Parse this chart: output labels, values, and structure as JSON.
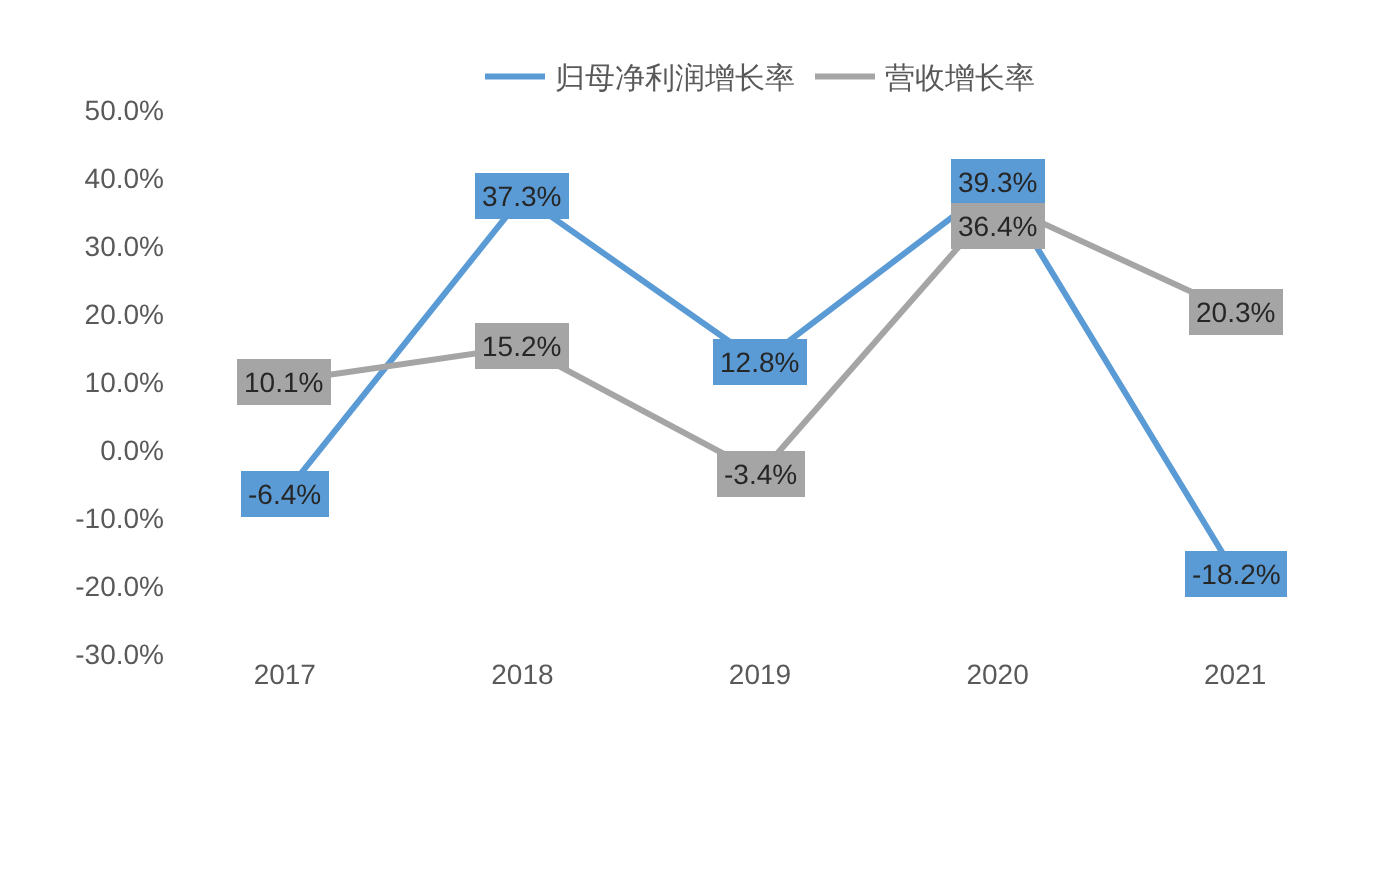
{
  "chart_data": {
    "type": "line",
    "categories": [
      "2017",
      "2018",
      "2019",
      "2020",
      "2021"
    ],
    "series": [
      {
        "name": "归母净利润增长率",
        "color": "#5b9bd5",
        "values": [
          -6.4,
          37.3,
          12.8,
          39.3,
          -18.2
        ],
        "value_labels": [
          "-6.4%",
          "37.3%",
          "12.8%",
          "39.3%",
          "-18.2%"
        ]
      },
      {
        "name": "营收增长率",
        "color": "#a5a5a5",
        "values": [
          10.1,
          15.2,
          -3.4,
          36.4,
          20.3
        ],
        "value_labels": [
          "10.1%",
          "15.2%",
          "-3.4%",
          "36.4%",
          "20.3%"
        ]
      }
    ],
    "ylim": [
      -30,
      50
    ],
    "yticks": [
      {
        "value": -30,
        "label": "-30.0%"
      },
      {
        "value": -20,
        "label": "-20.0%"
      },
      {
        "value": -10,
        "label": "-10.0%"
      },
      {
        "value": 0,
        "label": "0.0%"
      },
      {
        "value": 10,
        "label": "10.0%"
      },
      {
        "value": 20,
        "label": "20.0%"
      },
      {
        "value": 30,
        "label": "30.0%"
      },
      {
        "value": 40,
        "label": "40.0%"
      },
      {
        "value": 50,
        "label": "50.0%"
      }
    ],
    "grid": false,
    "legend": "top",
    "marker": "none"
  }
}
